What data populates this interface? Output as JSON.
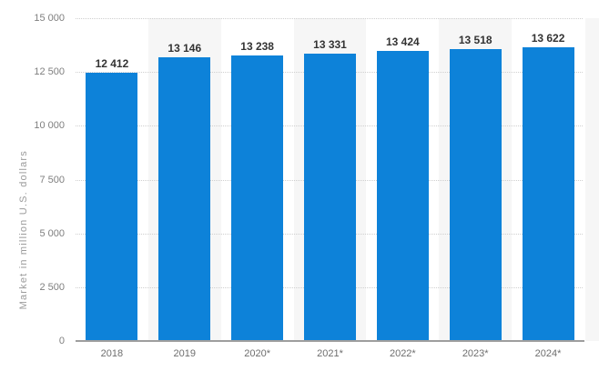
{
  "chart_data": {
    "type": "bar",
    "title": "",
    "xlabel": "",
    "ylabel": "Market in million U.S. dollars",
    "categories": [
      "2018",
      "2019",
      "2020*",
      "2021*",
      "2022*",
      "2023*",
      "2024*"
    ],
    "values": [
      12412,
      13146,
      13238,
      13331,
      13424,
      13518,
      13622
    ],
    "value_labels": [
      "12 412",
      "13 146",
      "13 238",
      "13 331",
      "13 424",
      "13 518",
      "13 622"
    ],
    "ylim": [
      0,
      15000
    ],
    "ytick_step": 2500,
    "ytick_values": [
      0,
      2500,
      5000,
      7500,
      10000,
      12500,
      15000
    ],
    "ytick_labels": [
      "0",
      "2 500",
      "5 000",
      "7 500",
      "10 000",
      "12 500",
      "15 000"
    ],
    "grid": "horizontal-dotted",
    "legend": "none",
    "banded_category_indices": [
      1,
      3,
      5
    ],
    "colors": {
      "bar": "#0d82d9",
      "band": "#f6f6f6",
      "gridline": "#cfcfcf",
      "axis_line": "#9e9e9e",
      "value_label": "#333333",
      "tick_label": "#7f7f7f",
      "axis_title": "#9b9b9b"
    }
  }
}
